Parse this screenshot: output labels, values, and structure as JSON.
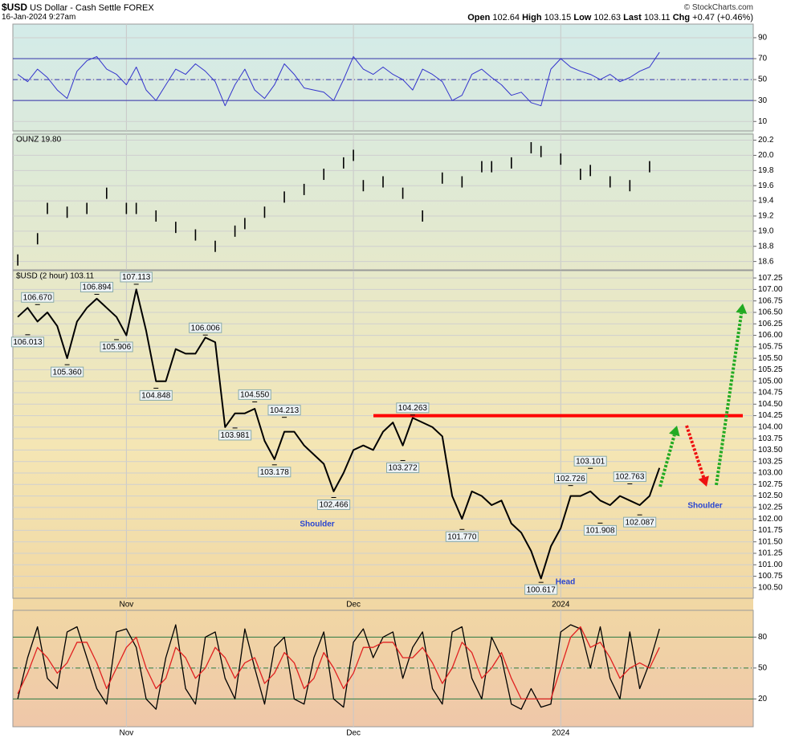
{
  "header": {
    "symbol": "$USD",
    "name": "US Dollar - Cash Settle FOREX",
    "date": "16-Jan-2024 9:27am",
    "credit": "© StockCharts.com",
    "quote": [
      {
        "label": "Open",
        "value": "102.64"
      },
      {
        "label": "High",
        "value": "103.15"
      },
      {
        "label": "Low",
        "value": "102.63"
      },
      {
        "label": "Last",
        "value": "103.11"
      },
      {
        "label": "Chg",
        "value": "+0.47 (+0.46%)"
      }
    ]
  },
  "chart_data": [
    {
      "type": "line",
      "color": "#3333cc",
      "ylim": [
        1,
        103
      ],
      "yticks": [
        90,
        70,
        50,
        30,
        10
      ],
      "ref_lines": [
        70,
        50,
        30
      ],
      "ref_color": "#3333aa",
      "values": [
        55,
        48,
        60,
        52,
        40,
        32,
        58,
        68,
        72,
        60,
        55,
        45,
        62,
        40,
        30,
        45,
        60,
        55,
        65,
        58,
        48,
        25,
        45,
        60,
        40,
        32,
        45,
        65,
        55,
        42,
        40,
        38,
        30,
        50,
        72,
        60,
        55,
        62,
        55,
        50,
        40,
        60,
        55,
        48,
        30,
        35,
        55,
        60,
        52,
        45,
        35,
        38,
        28,
        25,
        60,
        70,
        62,
        58,
        55,
        50,
        55,
        48,
        52,
        58,
        62,
        76,
        null,
        null,
        null,
        null,
        null,
        null,
        null,
        null,
        null
      ]
    },
    {
      "type": "scatter",
      "label": "OUNZ 19.80",
      "color": "#000000",
      "ylim": [
        18.49,
        20.28
      ],
      "yticks": [
        20.2,
        {
          "value": 20,
          "label": "20.0"
        },
        19.8,
        19.6,
        19.4,
        19.2,
        {
          "value": 19,
          "label": "19.0"
        },
        18.8,
        18.6
      ],
      "values": [
        18.62,
        null,
        18.9,
        19.3,
        null,
        19.25,
        null,
        19.3,
        null,
        19.5,
        null,
        19.3,
        19.3,
        null,
        19.2,
        null,
        19.05,
        null,
        18.95,
        null,
        18.8,
        null,
        19.0,
        19.1,
        null,
        19.25,
        null,
        19.45,
        null,
        19.55,
        null,
        19.75,
        null,
        19.9,
        20.0,
        19.6,
        null,
        19.65,
        null,
        19.5,
        null,
        19.2,
        null,
        19.7,
        null,
        19.65,
        null,
        19.85,
        19.85,
        null,
        19.9,
        null,
        20.1,
        20.05,
        null,
        19.95,
        null,
        19.75,
        19.8,
        null,
        19.65,
        null,
        19.6,
        null,
        19.85,
        null,
        null,
        null,
        null,
        null,
        null,
        null,
        null,
        null,
        null
      ]
    },
    {
      "type": "line",
      "label": "$USD (2 hour) 103.11",
      "color": "#000000",
      "ylim": [
        100.27,
        107.41
      ],
      "yticks": [
        {
          "value": 100.5,
          "label": "100.50"
        },
        100.75,
        {
          "value": 101,
          "label": "101.00"
        },
        101.25,
        {
          "value": 101.5,
          "label": "101.50"
        },
        101.75,
        {
          "value": 102,
          "label": "102.00"
        },
        102.25,
        {
          "value": 102.5,
          "label": "102.50"
        },
        102.75,
        {
          "value": 103,
          "label": "103.00"
        },
        103.25,
        {
          "value": 103.5,
          "label": "103.50"
        },
        103.75,
        {
          "value": 104,
          "label": "104.00"
        },
        104.25,
        {
          "value": 104.5,
          "label": "104.50"
        },
        104.75,
        {
          "value": 105,
          "label": "105.00"
        },
        105.25,
        {
          "value": 105.5,
          "label": "105.50"
        },
        105.75,
        {
          "value": 106,
          "label": "106.00"
        },
        106.25,
        {
          "value": 106.5,
          "label": "106.50"
        },
        106.75,
        {
          "value": 107,
          "label": "107.00"
        },
        107.25
      ],
      "categories": [
        null,
        null,
        null,
        null,
        null,
        null,
        null,
        null,
        null,
        null,
        null,
        "Nov",
        null,
        null,
        null,
        null,
        null,
        null,
        null,
        null,
        null,
        null,
        null,
        null,
        null,
        null,
        null,
        null,
        null,
        null,
        null,
        null,
        null,
        null,
        "Dec",
        null,
        null,
        null,
        null,
        null,
        null,
        null,
        null,
        null,
        null,
        null,
        null,
        null,
        null,
        null,
        null,
        null,
        null,
        null,
        null,
        "2024",
        null,
        null,
        null,
        null,
        null,
        null,
        null,
        null,
        null,
        null,
        null,
        null,
        null,
        null,
        null,
        null,
        null,
        null,
        null
      ],
      "values": [
        106.4,
        106.6,
        106.3,
        106.5,
        106.2,
        105.5,
        106.3,
        106.6,
        106.8,
        106.6,
        106.4,
        106.0,
        107.0,
        106.1,
        105.0,
        105.0,
        105.7,
        105.6,
        105.6,
        105.95,
        105.85,
        104.0,
        104.3,
        104.3,
        104.4,
        103.7,
        103.3,
        103.9,
        103.9,
        103.6,
        103.4,
        103.2,
        102.6,
        103.0,
        103.5,
        103.6,
        103.5,
        103.9,
        104.1,
        103.6,
        104.2,
        104.1,
        104.0,
        103.8,
        102.5,
        102.0,
        102.6,
        102.5,
        102.3,
        102.4,
        101.9,
        101.7,
        101.3,
        100.7,
        101.4,
        101.8,
        102.5,
        102.5,
        102.6,
        102.4,
        102.3,
        102.5,
        102.4,
        102.3,
        102.5,
        103.11,
        null,
        null,
        null,
        null,
        null,
        null,
        null,
        null,
        null
      ],
      "peak_labels": [
        {
          "x": 2,
          "value": 106.67,
          "label": "106.670"
        },
        {
          "x": 1,
          "value": 106.013,
          "label": "106.013"
        },
        {
          "x": 5,
          "value": 105.36,
          "label": "105.360"
        },
        {
          "x": 8,
          "value": 106.894,
          "label": "106.894"
        },
        {
          "x": 10,
          "value": 105.906,
          "label": "105.906"
        },
        {
          "x": 12,
          "value": 107.113,
          "label": "107.113"
        },
        {
          "x": 14,
          "value": 104.848,
          "label": "104.848"
        },
        {
          "x": 19,
          "value": 106.006,
          "label": "106.006"
        },
        {
          "x": 22,
          "value": 103.981,
          "label": "103.981"
        },
        {
          "x": 24,
          "value": 104.55,
          "label": "104.550"
        },
        {
          "x": 26,
          "value": 103.178,
          "label": "103.178"
        },
        {
          "x": 27,
          "value": 104.213,
          "label": "104.213"
        },
        {
          "x": 32,
          "value": 102.466,
          "label": "102.466"
        },
        {
          "x": 40,
          "value": 104.263,
          "label": "104.263"
        },
        {
          "x": 39,
          "value": 103.272,
          "label": "103.272"
        },
        {
          "x": 45,
          "value": 101.77,
          "label": "101.770"
        },
        {
          "x": 53,
          "value": 100.617,
          "label": "100.617"
        },
        {
          "x": 58,
          "value": 103.101,
          "label": "103.101"
        },
        {
          "x": 56,
          "value": 102.726,
          "label": "102.726"
        },
        {
          "x": 59,
          "value": 101.908,
          "label": "101.908"
        },
        {
          "x": 62,
          "value": 102.763,
          "label": "102.763"
        },
        {
          "x": 63,
          "value": 102.087,
          "label": "102.087"
        }
      ],
      "neckline": {
        "value": 104.25,
        "color": "#ff0000"
      },
      "annotations": [
        "Shoulder",
        "Head",
        "Shoulder"
      ],
      "annotation_color": "#2a45d0"
    },
    {
      "type": "line",
      "ylim": [
        -7,
        106
      ],
      "yticks": [
        80,
        50,
        20
      ],
      "ref_lines": [
        80,
        50,
        20
      ],
      "ref_color": "#2f7a3a",
      "categories": [
        null,
        null,
        null,
        null,
        null,
        null,
        null,
        null,
        null,
        null,
        null,
        "Nov",
        null,
        null,
        null,
        null,
        null,
        null,
        null,
        null,
        null,
        null,
        null,
        null,
        null,
        null,
        null,
        null,
        null,
        null,
        null,
        null,
        null,
        null,
        "Dec",
        null,
        null,
        null,
        null,
        null,
        null,
        null,
        null,
        null,
        null,
        null,
        null,
        null,
        null,
        null,
        null,
        null,
        null,
        null,
        null,
        "2024",
        null,
        null,
        null,
        null,
        null,
        null,
        null,
        null,
        null,
        null,
        null,
        null,
        null,
        null,
        null,
        null,
        null,
        null,
        null
      ],
      "series": [
        {
          "color": "#000000",
          "values": [
            20,
            60,
            90,
            40,
            30,
            85,
            90,
            60,
            30,
            15,
            85,
            88,
            70,
            20,
            10,
            60,
            92,
            30,
            15,
            80,
            85,
            40,
            20,
            88,
            50,
            15,
            70,
            80,
            20,
            15,
            60,
            85,
            20,
            12,
            75,
            88,
            60,
            80,
            85,
            40,
            70,
            85,
            30,
            15,
            85,
            90,
            40,
            20,
            80,
            60,
            15,
            10,
            30,
            12,
            15,
            85,
            92,
            88,
            50,
            90,
            40,
            20,
            85,
            30,
            55,
            88,
            null,
            null,
            null,
            null,
            null,
            null,
            null,
            null,
            null
          ]
        },
        {
          "color": "#e02020",
          "values": [
            25,
            45,
            70,
            60,
            45,
            55,
            75,
            75,
            55,
            30,
            50,
            70,
            80,
            50,
            30,
            40,
            70,
            60,
            40,
            50,
            70,
            60,
            40,
            55,
            60,
            35,
            45,
            65,
            55,
            30,
            40,
            65,
            50,
            30,
            45,
            70,
            70,
            75,
            75,
            60,
            60,
            70,
            55,
            35,
            50,
            75,
            65,
            40,
            50,
            65,
            40,
            20,
            20,
            20,
            20,
            50,
            80,
            90,
            70,
            75,
            60,
            40,
            50,
            55,
            50,
            70,
            null,
            null,
            null,
            null,
            null,
            null,
            null,
            null,
            null
          ]
        }
      ]
    }
  ]
}
